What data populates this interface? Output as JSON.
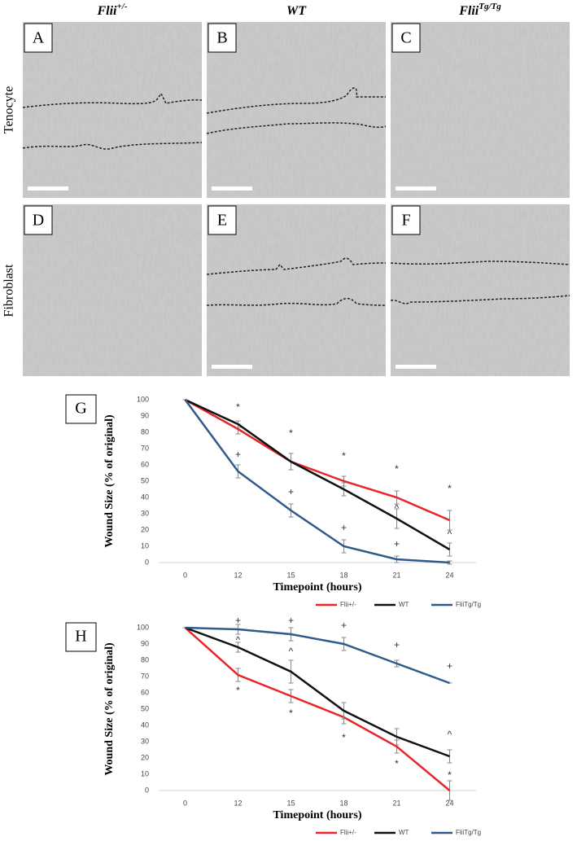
{
  "columns": [
    {
      "base": "Flii",
      "sup": "+/-"
    },
    {
      "base": "WT"
    },
    {
      "base": "Flii",
      "sup": "Tg/Tg"
    }
  ],
  "rows": [
    "Tenocyte",
    "Fibroblast"
  ],
  "panels": [
    "A",
    "B",
    "C",
    "D",
    "E",
    "F"
  ],
  "chart_data": [
    {
      "type": "line",
      "panel": "G",
      "y_label": "Wound Size (% of original)",
      "x_label": "Timepoint (hours)",
      "categories": [
        "0",
        "12",
        "15",
        "18",
        "21",
        "24"
      ],
      "ylim": [
        0,
        100
      ],
      "yticks": [
        0,
        10,
        20,
        30,
        40,
        50,
        60,
        70,
        80,
        90,
        100
      ],
      "series": [
        {
          "name": "Flii+/-",
          "color": "#e8262a",
          "values": [
            100,
            82,
            62,
            50,
            40,
            26
          ],
          "errors": [
            0,
            3,
            5,
            3,
            4,
            6
          ]
        },
        {
          "name": "WT",
          "color": "#111111",
          "values": [
            100,
            85,
            62,
            45,
            27,
            8
          ],
          "errors": [
            0,
            2,
            5,
            4,
            6,
            4
          ]
        },
        {
          "name": "FliiTg/Tg",
          "color": "#2e5b8c",
          "values": [
            100,
            56,
            32,
            10,
            2,
            0
          ],
          "errors": [
            0,
            4,
            4,
            4,
            2,
            1
          ]
        }
      ],
      "annotations": [
        {
          "text": "*",
          "x": 1,
          "y": 95
        },
        {
          "text": "+",
          "x": 1,
          "y": 66
        },
        {
          "text": "*",
          "x": 2,
          "y": 79
        },
        {
          "text": "+",
          "x": 2,
          "y": 43
        },
        {
          "text": "*",
          "x": 3,
          "y": 65
        },
        {
          "text": "+",
          "x": 3,
          "y": 21
        },
        {
          "text": "*",
          "x": 4,
          "y": 57
        },
        {
          "text": "^",
          "x": 4,
          "y": 33
        },
        {
          "text": "+",
          "x": 4,
          "y": 11
        },
        {
          "text": "*",
          "x": 5,
          "y": 45
        },
        {
          "text": "^",
          "x": 5,
          "y": 17
        }
      ]
    },
    {
      "type": "line",
      "panel": "H",
      "y_label": "Wound Size (% of original)",
      "x_label": "Timepoint (hours)",
      "categories": [
        "0",
        "12",
        "15",
        "18",
        "21",
        "24"
      ],
      "ylim": [
        0,
        100
      ],
      "yticks": [
        0,
        10,
        20,
        30,
        40,
        50,
        60,
        70,
        80,
        90,
        100
      ],
      "series": [
        {
          "name": "Flii+/-",
          "color": "#e8262a",
          "values": [
            100,
            71,
            58,
            45,
            27,
            0
          ],
          "errors": [
            0,
            4,
            4,
            4,
            4,
            6
          ]
        },
        {
          "name": "WT",
          "color": "#111111",
          "values": [
            100,
            88,
            73,
            49,
            33,
            21
          ],
          "errors": [
            0,
            3,
            7,
            5,
            5,
            4
          ]
        },
        {
          "name": "FliiTg/Tg",
          "color": "#2e5b8c",
          "values": [
            100,
            99,
            96,
            90,
            78,
            66
          ],
          "errors": [
            0,
            3,
            4,
            4,
            2,
            0
          ]
        }
      ],
      "annotations": [
        {
          "text": "+",
          "x": 1,
          "y": 104
        },
        {
          "text": "^",
          "x": 1,
          "y": 92
        },
        {
          "text": "*",
          "x": 1,
          "y": 61
        },
        {
          "text": "+",
          "x": 2,
          "y": 104
        },
        {
          "text": "^",
          "x": 2,
          "y": 85
        },
        {
          "text": "*",
          "x": 2,
          "y": 47
        },
        {
          "text": "+",
          "x": 3,
          "y": 101
        },
        {
          "text": "*",
          "x": 3,
          "y": 32
        },
        {
          "text": "+",
          "x": 4,
          "y": 89
        },
        {
          "text": "*",
          "x": 4,
          "y": 16
        },
        {
          "text": "+",
          "x": 5,
          "y": 76
        },
        {
          "text": "^",
          "x": 5,
          "y": 34
        },
        {
          "text": "*",
          "x": 5,
          "y": 9
        }
      ]
    }
  ]
}
